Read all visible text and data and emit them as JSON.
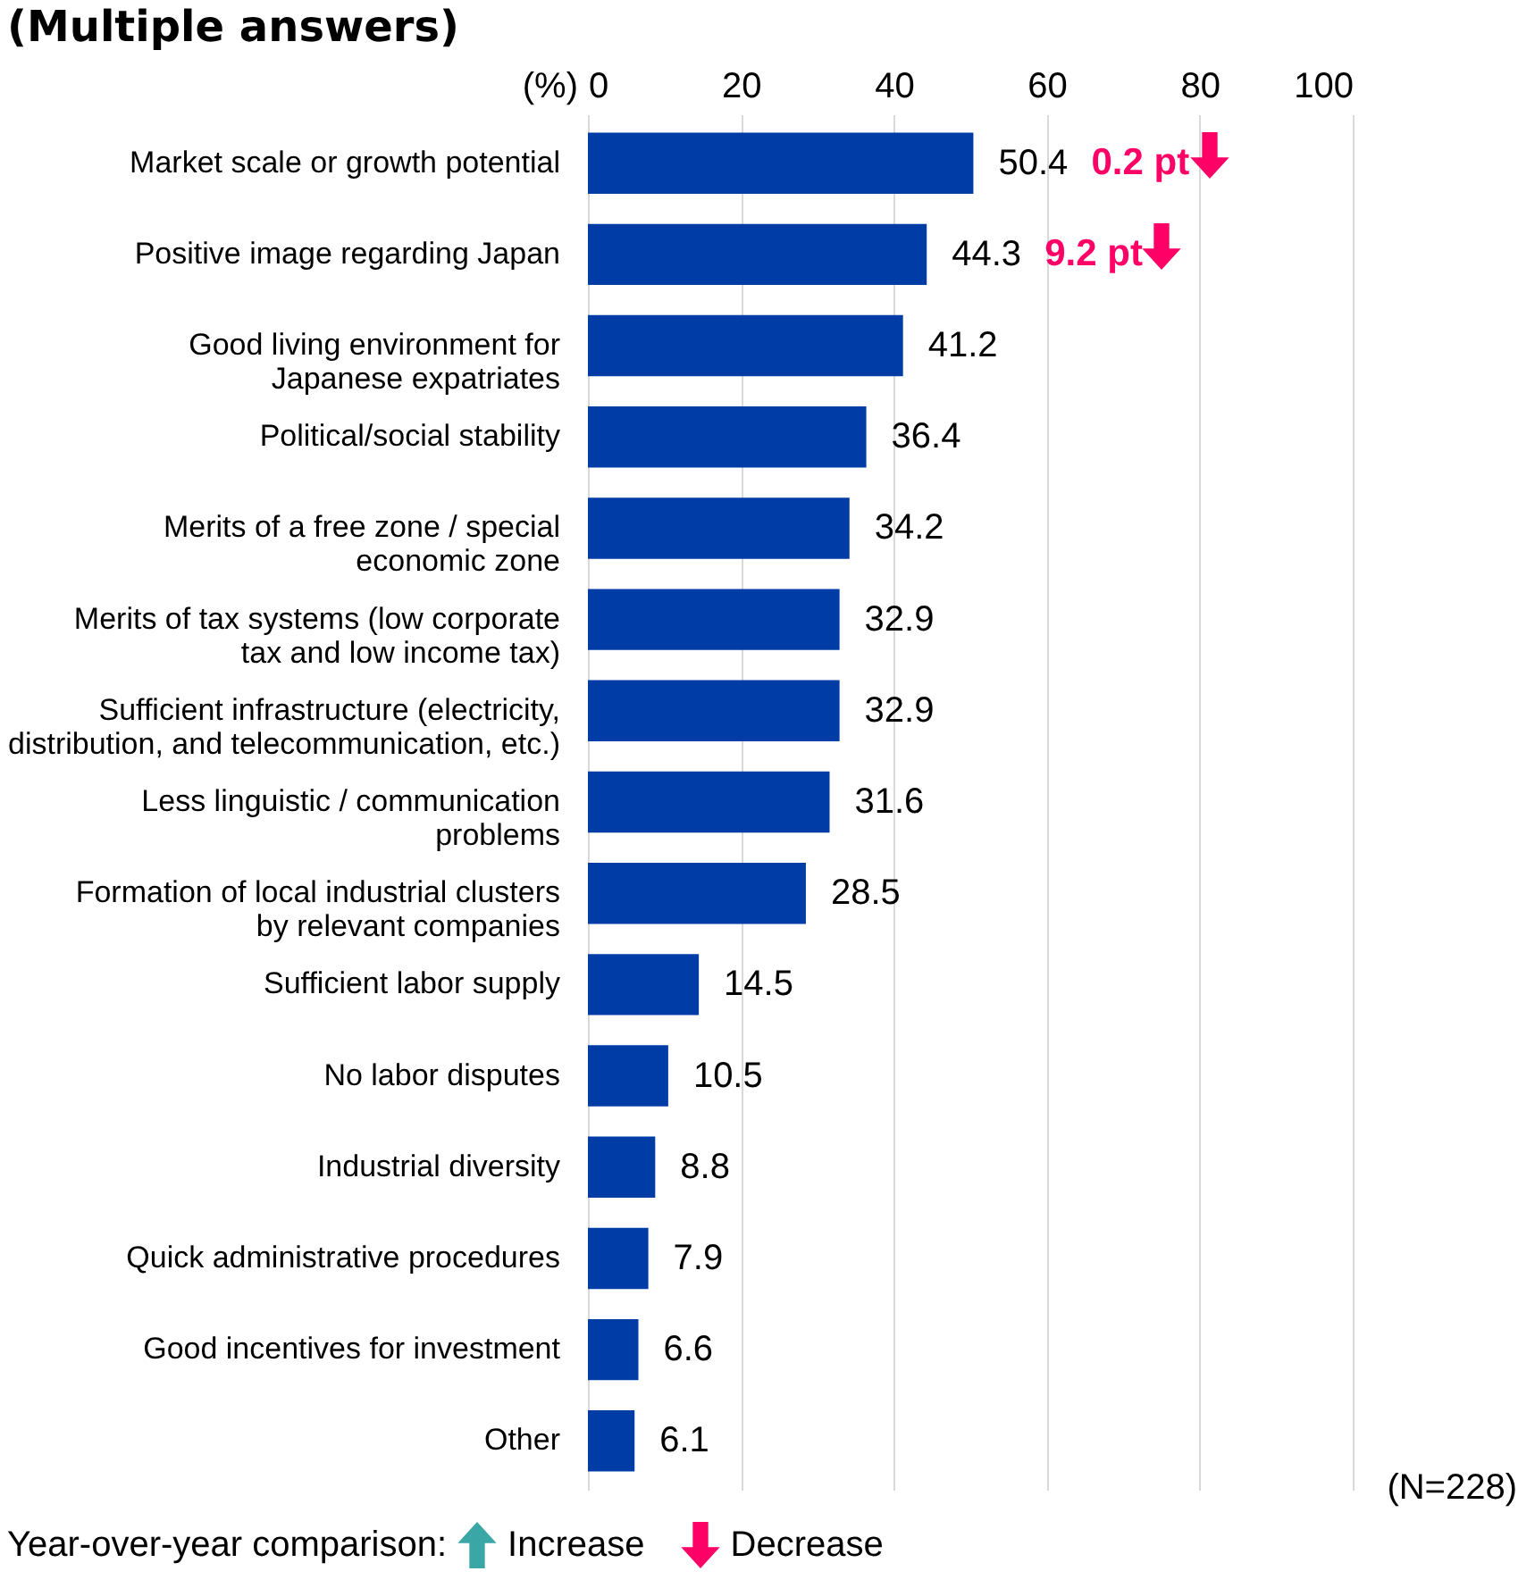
{
  "chart_data": {
    "type": "bar",
    "orientation": "horizontal",
    "title": "(Multiple answers)",
    "xlabel": "(%)",
    "categories": [
      "Market scale or growth potential",
      "Positive image regarding Japan",
      "Good living environment for\nJapanese expatriates",
      "Political/social stability",
      "Merits of a free zone / special\neconomic zone",
      "Merits of tax systems (low corporate\ntax and low income tax)",
      "Sufficient infrastructure (electricity,\ndistribution, and telecommunication, etc.)",
      "Less linguistic / communication\nproblems",
      "Formation of local industrial clusters\nby relevant companies",
      "Sufficient labor supply",
      "No labor disputes",
      "Industrial diversity",
      "Quick administrative procedures",
      "Good incentives for investment",
      "Other"
    ],
    "values": [
      50.4,
      44.3,
      41.2,
      36.4,
      34.2,
      32.9,
      32.9,
      31.6,
      28.5,
      14.5,
      10.5,
      8.8,
      7.9,
      6.6,
      6.1
    ],
    "color": "#003ca6",
    "xlim": [
      0,
      100
    ],
    "xticks": [
      0,
      20,
      40,
      60,
      80,
      100
    ],
    "grid": "x",
    "data_labels": true,
    "annotations": [
      "0.2 pt",
      "9.2 pt",
      "(N=228)",
      "Year-over-year comparison:",
      "Increase",
      "Decrease"
    ]
  }
}
